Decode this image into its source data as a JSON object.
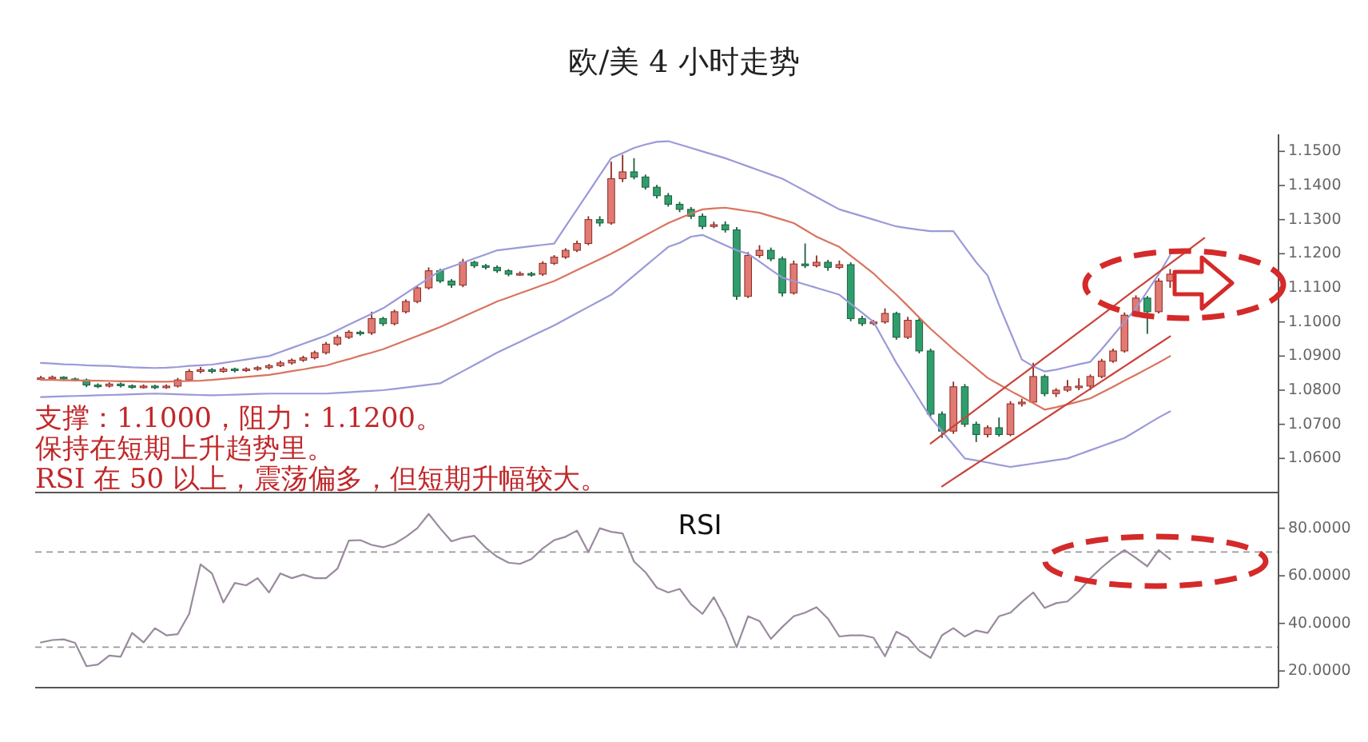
{
  "chart_data": [
    {
      "type": "candlestick",
      "title": "欧/美 4 小时走势",
      "categories": [
        null,
        null,
        null,
        null,
        null,
        null,
        null,
        null,
        null,
        null,
        null,
        null,
        null,
        null,
        null,
        null,
        null,
        null,
        null,
        null,
        null,
        null,
        null,
        null,
        null,
        null,
        null,
        null,
        null,
        null,
        null,
        null,
        null,
        null,
        null,
        null,
        null,
        null,
        null,
        null,
        null,
        null,
        null,
        null,
        null,
        null,
        null,
        null,
        null,
        null,
        null,
        null,
        null,
        null,
        null,
        null,
        null,
        null,
        null,
        null,
        null,
        null,
        null,
        null,
        null,
        null,
        null,
        null,
        null,
        null,
        null,
        null,
        null,
        null,
        null,
        null,
        null,
        null,
        null,
        null,
        null,
        null,
        null,
        null,
        null,
        null,
        null,
        null,
        null,
        null,
        null,
        null,
        null,
        null,
        null,
        null,
        null,
        null,
        null,
        null,
        null,
        null,
        null,
        null,
        null,
        null,
        null,
        null,
        null
      ],
      "ohlc": [
        [
          1.0834,
          1.0842,
          1.083,
          1.0836
        ],
        [
          1.0836,
          1.0843,
          1.0831,
          1.0838
        ],
        [
          1.0838,
          1.0841,
          1.0828,
          1.0833
        ],
        [
          1.0833,
          1.0837,
          1.0826,
          1.083
        ],
        [
          1.083,
          1.0834,
          1.0809,
          1.0815
        ],
        [
          1.0815,
          1.082,
          1.0806,
          1.0812
        ],
        [
          1.0812,
          1.0823,
          1.0808,
          1.0818
        ],
        [
          1.0818,
          1.0822,
          1.0808,
          1.0813
        ],
        [
          1.0813,
          1.0817,
          1.0804,
          1.081
        ],
        [
          1.081,
          1.0817,
          1.0805,
          1.0812
        ],
        [
          1.0812,
          1.0816,
          1.0803,
          1.0808
        ],
        [
          1.0808,
          1.0817,
          1.0804,
          1.0812
        ],
        [
          1.0812,
          1.0836,
          1.0808,
          1.083
        ],
        [
          1.083,
          1.0862,
          1.0826,
          1.0855
        ],
        [
          1.0855,
          1.0868,
          1.085,
          1.086
        ],
        [
          1.086,
          1.0865,
          1.0849,
          1.0855
        ],
        [
          1.0855,
          1.0868,
          1.0851,
          1.0862
        ],
        [
          1.0862,
          1.0866,
          1.0852,
          1.0858
        ],
        [
          1.0858,
          1.0867,
          1.0854,
          1.0862
        ],
        [
          1.0862,
          1.0871,
          1.0857,
          1.0866
        ],
        [
          1.0866,
          1.0877,
          1.0861,
          1.0872
        ],
        [
          1.0872,
          1.0886,
          1.0868,
          1.088
        ],
        [
          1.088,
          1.0893,
          1.0875,
          1.0888
        ],
        [
          1.0888,
          1.0901,
          1.0883,
          1.0895
        ],
        [
          1.0895,
          1.0916,
          1.089,
          1.091
        ],
        [
          1.091,
          1.0941,
          1.0905,
          1.0935
        ],
        [
          1.0935,
          1.0962,
          1.093,
          1.0955
        ],
        [
          1.0955,
          1.0976,
          1.095,
          1.097
        ],
        [
          1.097,
          1.0975,
          1.096,
          1.0968
        ],
        [
          1.0968,
          1.103,
          1.0962,
          1.101
        ],
        [
          1.101,
          1.1015,
          1.0988,
          1.0995
        ],
        [
          1.0995,
          1.1036,
          1.099,
          1.103
        ],
        [
          1.103,
          1.1066,
          1.1025,
          1.106
        ],
        [
          1.106,
          1.1107,
          1.1055,
          1.11
        ],
        [
          1.11,
          1.116,
          1.1095,
          1.115
        ],
        [
          1.115,
          1.1156,
          1.1114,
          1.112
        ],
        [
          1.112,
          1.1126,
          1.11,
          1.1108
        ],
        [
          1.1108,
          1.1185,
          1.1102,
          1.1175
        ],
        [
          1.1175,
          1.118,
          1.1158,
          1.1165
        ],
        [
          1.1165,
          1.117,
          1.1154,
          1.116
        ],
        [
          1.116,
          1.1166,
          1.1144,
          1.115
        ],
        [
          1.115,
          1.1155,
          1.1134,
          1.114
        ],
        [
          1.114,
          1.1148,
          1.1135,
          1.1142
        ],
        [
          1.1142,
          1.1147,
          1.1133,
          1.114
        ],
        [
          1.114,
          1.1178,
          1.1135,
          1.1172
        ],
        [
          1.1172,
          1.1196,
          1.1167,
          1.119
        ],
        [
          1.119,
          1.1216,
          1.1185,
          1.121
        ],
        [
          1.121,
          1.1238,
          1.1205,
          1.123
        ],
        [
          1.123,
          1.131,
          1.1225,
          1.13
        ],
        [
          1.13,
          1.131,
          1.128,
          1.129
        ],
        [
          1.129,
          1.147,
          1.1285,
          1.142
        ],
        [
          1.142,
          1.149,
          1.141,
          1.144
        ],
        [
          1.144,
          1.148,
          1.1418,
          1.1425
        ],
        [
          1.1425,
          1.1432,
          1.1388,
          1.1395
        ],
        [
          1.1395,
          1.1402,
          1.1362,
          1.137
        ],
        [
          1.137,
          1.1378,
          1.1338,
          1.1345
        ],
        [
          1.1345,
          1.1352,
          1.1322,
          1.133
        ],
        [
          1.133,
          1.1337,
          1.1302,
          1.131
        ],
        [
          1.131,
          1.1318,
          1.1272,
          1.128
        ],
        [
          1.128,
          1.1294,
          1.1275,
          1.1285
        ],
        [
          1.1285,
          1.1295,
          1.1262,
          1.127
        ],
        [
          1.127,
          1.1278,
          1.1065,
          1.1075
        ],
        [
          1.1075,
          1.1205,
          1.107,
          1.1195
        ],
        [
          1.1195,
          1.1225,
          1.1188,
          1.121
        ],
        [
          1.121,
          1.1218,
          1.1178,
          1.1185
        ],
        [
          1.1185,
          1.1192,
          1.1075,
          1.1085
        ],
        [
          1.1085,
          1.118,
          1.108,
          1.117
        ],
        [
          1.117,
          1.123,
          1.1158,
          1.1165
        ],
        [
          1.1165,
          1.1195,
          1.116,
          1.1175
        ],
        [
          1.1175,
          1.1182,
          1.115,
          1.116
        ],
        [
          1.116,
          1.118,
          1.1155,
          1.1168
        ],
        [
          1.1168,
          1.1175,
          1.1002,
          1.101
        ],
        [
          1.101,
          1.1018,
          1.0988,
          1.0995
        ],
        [
          1.0995,
          1.1006,
          1.099,
          1.1
        ],
        [
          1.1,
          1.104,
          1.0995,
          1.1025
        ],
        [
          1.1025,
          1.103,
          1.0948,
          1.0955
        ],
        [
          1.0955,
          1.1015,
          1.095,
          1.1005
        ],
        [
          1.1005,
          1.1012,
          1.0908,
          1.0915
        ],
        [
          1.0915,
          1.0922,
          1.0722,
          1.073
        ],
        [
          1.073,
          1.0738,
          1.066,
          1.068
        ],
        [
          1.068,
          1.0825,
          1.0672,
          1.081
        ],
        [
          1.081,
          1.0818,
          1.0692,
          1.07
        ],
        [
          1.07,
          1.0708,
          1.0648,
          1.067
        ],
        [
          1.067,
          1.0697,
          1.0662,
          1.069
        ],
        [
          1.069,
          1.072,
          1.0664,
          1.067
        ],
        [
          1.067,
          1.0768,
          1.0665,
          1.076
        ],
        [
          1.076,
          1.0775,
          1.0752,
          1.0765
        ],
        [
          1.0765,
          1.088,
          1.076,
          1.084
        ],
        [
          1.084,
          1.0846,
          1.0782,
          1.079
        ],
        [
          1.079,
          1.0806,
          1.078,
          1.08
        ],
        [
          1.08,
          1.083,
          1.0795,
          1.081
        ],
        [
          1.081,
          1.0835,
          1.08,
          1.0812
        ],
        [
          1.0812,
          1.0846,
          1.08,
          1.084
        ],
        [
          1.084,
          1.0892,
          1.0835,
          1.0885
        ],
        [
          1.0885,
          1.0922,
          1.088,
          1.0915
        ],
        [
          1.0915,
          1.1028,
          1.091,
          1.102
        ],
        [
          1.102,
          1.1078,
          1.1015,
          1.107
        ],
        [
          1.107,
          1.1076,
          1.0965,
          1.103
        ],
        [
          1.103,
          1.1128,
          1.1025,
          1.112
        ],
        [
          1.112,
          1.1155,
          1.11,
          1.114
        ],
        null,
        null,
        null,
        null,
        null,
        null,
        null,
        null,
        null
      ],
      "series": [
        {
          "type": "line",
          "color": "#9a9ad8",
          "values": [
            1.088,
            1.0878,
            1.0876,
            1.0875,
            1.0873,
            1.0872,
            1.0871,
            1.0869,
            1.0867,
            1.0866,
            1.0865,
            1.0866,
            1.0868,
            1.0871,
            1.0873,
            1.0875,
            1.088,
            1.0885,
            1.089,
            1.0895,
            1.09,
            1.0912,
            1.0924,
            1.0936,
            1.0948,
            1.096,
            1.0976,
            1.0992,
            1.1008,
            1.1024,
            1.104,
            1.1062,
            1.1084,
            1.1106,
            1.1128,
            1.115,
            1.1162,
            1.1174,
            1.1186,
            1.1198,
            1.121,
            1.1214,
            1.1218,
            1.1222,
            1.1226,
            1.123,
            1.128,
            1.133,
            1.138,
            1.143,
            1.148,
            1.1495,
            1.151,
            1.152,
            1.1528,
            1.153,
            1.152,
            1.151,
            1.15,
            1.149,
            1.148,
            1.1468,
            1.1456,
            1.1444,
            1.1432,
            1.142,
            1.1402,
            1.1384,
            1.1366,
            1.1348,
            1.133,
            1.132,
            1.131,
            1.13,
            1.129,
            1.128,
            1.1275,
            1.127,
            1.1266,
            1.1266,
            1.1266,
            1.122,
            1.1175,
            1.1136,
            1.105,
            1.097,
            1.089,
            1.087,
            1.0855,
            1.086,
            1.0868,
            1.0876,
            1.0883,
            1.092,
            1.096,
            1.1,
            1.104,
            1.109,
            1.114,
            1.1196,
            null,
            null,
            null,
            null,
            null,
            null,
            null,
            null,
            null
          ]
        },
        {
          "type": "line",
          "color": "#d9745f",
          "values": [
            1.083,
            1.083,
            1.0829,
            1.0829,
            1.0828,
            1.0828,
            1.0827,
            1.0826,
            1.0826,
            1.0825,
            1.0825,
            1.0825,
            1.0826,
            1.0827,
            1.0828,
            1.083,
            1.0833,
            1.0836,
            1.0839,
            1.0842,
            1.0845,
            1.085,
            1.0856,
            1.0861,
            1.0867,
            1.0872,
            1.0882,
            1.0891,
            1.0901,
            1.091,
            1.092,
            1.0933,
            1.0946,
            1.0959,
            1.0972,
            1.0985,
            1.1,
            1.1015,
            1.103,
            1.1045,
            1.106,
            1.1072,
            1.1084,
            1.1096,
            1.1108,
            1.112,
            1.1136,
            1.1152,
            1.1168,
            1.1184,
            1.12,
            1.1218,
            1.1236,
            1.1254,
            1.1272,
            1.129,
            1.1304,
            1.1318,
            1.133,
            1.1333,
            1.1335,
            1.133,
            1.1325,
            1.132,
            1.131,
            1.13,
            1.129,
            1.127,
            1.125,
            1.1235,
            1.122,
            1.1194,
            1.1168,
            1.1142,
            1.111,
            1.108,
            1.1047,
            1.1013,
            1.098,
            1.095,
            1.092,
            1.0892,
            1.0864,
            1.0836,
            1.0817,
            1.0798,
            1.078,
            1.0762,
            1.0743,
            1.075,
            1.0758,
            1.0767,
            1.0776,
            1.0793,
            1.081,
            1.0828,
            1.0845,
            1.0863,
            1.0881,
            1.09,
            null,
            null,
            null,
            null,
            null,
            null,
            null,
            null,
            null
          ]
        },
        {
          "type": "line",
          "color": "#9a9ad8",
          "values": [
            1.078,
            1.0781,
            1.0782,
            1.0783,
            1.0784,
            1.0785,
            1.0786,
            1.0787,
            1.0788,
            1.0789,
            1.079,
            1.0789,
            1.0788,
            1.0787,
            1.0786,
            1.0785,
            1.0786,
            1.0787,
            1.0788,
            1.0789,
            1.079,
            1.079,
            1.079,
            1.079,
            1.079,
            1.079,
            1.0792,
            1.0794,
            1.0796,
            1.0798,
            1.08,
            1.0804,
            1.0808,
            1.0812,
            1.0816,
            1.082,
            1.0838,
            1.0856,
            1.0874,
            1.0892,
            1.091,
            1.0926,
            1.0942,
            1.0958,
            1.0974,
            1.099,
            1.1008,
            1.1026,
            1.1044,
            1.1062,
            1.108,
            1.1108,
            1.1136,
            1.1164,
            1.1192,
            1.122,
            1.1232,
            1.125,
            1.1255,
            1.124,
            1.1225,
            1.121,
            1.12,
            1.1177,
            1.1153,
            1.113,
            1.112,
            1.111,
            1.11,
            1.109,
            1.108,
            1.1053,
            1.1027,
            1.1,
            1.094,
            1.088,
            1.0827,
            1.0773,
            1.072,
            1.068,
            1.064,
            1.06,
            1.0594,
            1.0588,
            1.0581,
            1.0575,
            1.058,
            1.0585,
            1.059,
            1.0595,
            1.06,
            1.0612,
            1.0624,
            1.0636,
            1.0648,
            1.066,
            1.068,
            1.07,
            1.072,
            1.0738,
            null,
            null,
            null,
            null,
            null,
            null,
            null,
            null,
            null
          ]
        },
        {
          "type": "line",
          "color": "#c9433a",
          "values": [
            null,
            null,
            null,
            null,
            null,
            null,
            null,
            null,
            null,
            null,
            null,
            null,
            null,
            null,
            null,
            null,
            null,
            null,
            null,
            null,
            null,
            null,
            null,
            null,
            null,
            null,
            null,
            null,
            null,
            null,
            null,
            null,
            null,
            null,
            null,
            null,
            null,
            null,
            null,
            null,
            null,
            null,
            null,
            null,
            null,
            null,
            null,
            null,
            null,
            null,
            null,
            null,
            null,
            null,
            null,
            null,
            null,
            null,
            null,
            null,
            null,
            null,
            null,
            null,
            null,
            null,
            null,
            null,
            null,
            null,
            null,
            null,
            null,
            null,
            null,
            null,
            null,
            null,
            1.0644,
            1.0669,
            1.0694,
            1.0719,
            1.0744,
            1.0769,
            1.0795,
            1.082,
            1.0845,
            1.087,
            1.0895,
            1.092,
            1.0945,
            1.097,
            1.0995,
            1.102,
            1.1045,
            1.1071,
            1.1096,
            1.1121,
            1.1146,
            1.1171,
            1.1196,
            1.1221,
            1.1246,
            null,
            null,
            null,
            null,
            null,
            null
          ]
        },
        {
          "type": "line",
          "color": "#c9433a",
          "values": [
            null,
            null,
            null,
            null,
            null,
            null,
            null,
            null,
            null,
            null,
            null,
            null,
            null,
            null,
            null,
            null,
            null,
            null,
            null,
            null,
            null,
            null,
            null,
            null,
            null,
            null,
            null,
            null,
            null,
            null,
            null,
            null,
            null,
            null,
            null,
            null,
            null,
            null,
            null,
            null,
            null,
            null,
            null,
            null,
            null,
            null,
            null,
            null,
            null,
            null,
            null,
            null,
            null,
            null,
            null,
            null,
            null,
            null,
            null,
            null,
            null,
            null,
            null,
            null,
            null,
            null,
            null,
            null,
            null,
            null,
            null,
            null,
            null,
            null,
            null,
            null,
            null,
            null,
            null,
            1.0518,
            1.054,
            1.0562,
            1.0584,
            1.0606,
            1.0628,
            1.065,
            1.0672,
            1.0694,
            1.0716,
            1.0738,
            1.076,
            1.0782,
            1.0804,
            1.0826,
            1.0848,
            1.087,
            1.0892,
            1.0914,
            1.0936,
            1.0958,
            null,
            null,
            null,
            null,
            null,
            null,
            null,
            null,
            null
          ]
        }
      ],
      "ylim": [
        1.05,
        1.155
      ],
      "yticks": [
        {
          "value": 1.06,
          "label": "1.0600"
        },
        {
          "value": 1.07,
          "label": "1.0700"
        },
        {
          "value": 1.08,
          "label": "1.0800"
        },
        {
          "value": 1.09,
          "label": "1.0900"
        },
        {
          "value": 1.1,
          "label": "1.1000"
        },
        {
          "value": 1.11,
          "label": "1.1100"
        },
        {
          "value": 1.12,
          "label": "1.1200"
        },
        {
          "value": 1.13,
          "label": "1.1300"
        },
        {
          "value": 1.14,
          "label": "1.1400"
        },
        {
          "value": 1.15,
          "label": "1.1500"
        }
      ],
      "annotations": [
        "支撑：1.1000，阻力：1.1200。",
        "保持在短期上升趋势里。",
        "RSI 在 50 以上，震荡偏多，但短期升幅较大。"
      ]
    },
    {
      "type": "line",
      "title": "RSI",
      "categories": [
        null,
        null,
        null,
        null,
        null,
        null,
        null,
        null,
        null,
        null,
        null,
        null,
        null,
        null,
        null,
        null,
        null,
        null,
        null,
        null,
        null,
        null,
        null,
        null,
        null,
        null,
        null,
        null,
        null,
        null,
        null,
        null,
        null,
        null,
        null,
        null,
        null,
        null,
        null,
        null,
        null,
        null,
        null,
        null,
        null,
        null,
        null,
        null,
        null,
        null,
        null,
        null,
        null,
        null,
        null,
        null,
        null,
        null,
        null,
        null,
        null,
        null,
        null,
        null,
        null,
        null,
        null,
        null,
        null,
        null,
        null,
        null,
        null,
        null,
        null,
        null,
        null,
        null,
        null,
        null,
        null,
        null,
        null,
        null,
        null,
        null,
        null,
        null,
        null,
        null,
        null,
        null,
        null,
        null,
        null,
        null,
        null,
        null,
        null,
        null,
        null,
        null,
        null,
        null,
        null,
        null,
        null,
        null,
        null
      ],
      "color": "#9a8a9e",
      "values": [
        32,
        33,
        33.3,
        31.8,
        22,
        22.7,
        26.5,
        26,
        36,
        32,
        38,
        35,
        35.5,
        44,
        64.8,
        61,
        48.8,
        57,
        56,
        59,
        53,
        61,
        59,
        60.5,
        59,
        59,
        63,
        74.8,
        75,
        73,
        72,
        73.5,
        76.4,
        80,
        86,
        80,
        74.5,
        76,
        76.8,
        71.8,
        68,
        65.5,
        65,
        67,
        71.5,
        75,
        76.4,
        79,
        70,
        80,
        78.5,
        77.8,
        66,
        61.5,
        55,
        53,
        54.5,
        48,
        44,
        51,
        42,
        30,
        43,
        41,
        33.5,
        38.5,
        43,
        44.5,
        46.8,
        42,
        34.5,
        35,
        35,
        34,
        26.2,
        36.5,
        34,
        28.5,
        25.5,
        35,
        38,
        34.5,
        37,
        36,
        43,
        44.5,
        49,
        53,
        46.5,
        48.5,
        49.2,
        53.5,
        59,
        63.5,
        67.5,
        70.8,
        67.5,
        64,
        70.8,
        67,
        null,
        null,
        null,
        null,
        null,
        null,
        null,
        null,
        null
      ],
      "ylim": [
        13,
        95
      ],
      "yticks": [
        {
          "value": 20,
          "label": "20.0000"
        },
        {
          "value": 40,
          "label": "40.0000"
        },
        {
          "value": 60,
          "label": "60.0000"
        },
        {
          "value": 80,
          "label": "80.0000"
        }
      ],
      "ref_lines": [
        {
          "axis": "y",
          "value": 70,
          "color": "#999999",
          "line_style": "dashed"
        },
        {
          "axis": "y",
          "value": 30,
          "color": "#999999",
          "line_style": "dashed"
        }
      ]
    }
  ]
}
